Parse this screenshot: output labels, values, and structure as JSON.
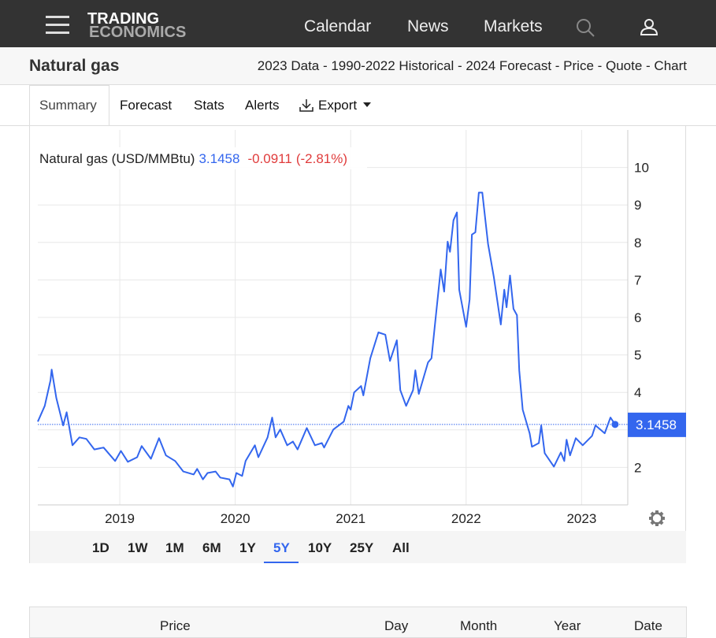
{
  "nav": {
    "logo_top": "TRADING",
    "logo_bottom": "ECONOMICS",
    "links": [
      "Calendar",
      "News",
      "Markets"
    ]
  },
  "header": {
    "title": "Natural gas",
    "links": "2023 Data - 1990-2022 Historical - 2024 Forecast - Price - Quote - Chart"
  },
  "tabs": [
    "Summary",
    "Forecast",
    "Stats",
    "Alerts",
    "Export"
  ],
  "chart_data": {
    "type": "line",
    "x": [
      2018.29,
      2018.35,
      2018.4,
      2018.41,
      2018.45,
      2018.51,
      2018.54,
      2018.59,
      2018.65,
      2018.71,
      2018.78,
      2018.86,
      2018.96,
      2019.01,
      2019.07,
      2019.15,
      2019.19,
      2019.27,
      2019.34,
      2019.4,
      2019.48,
      2019.55,
      2019.64,
      2019.67,
      2019.72,
      2019.76,
      2019.83,
      2019.87,
      2019.95,
      2019.98,
      2020.01,
      2020.06,
      2020.09,
      2020.17,
      2020.2,
      2020.28,
      2020.32,
      2020.35,
      2020.39,
      2020.45,
      2020.5,
      2020.54,
      2020.62,
      2020.69,
      2020.75,
      2020.77,
      2020.85,
      2020.94,
      2020.98,
      2021.0,
      2021.03,
      2021.09,
      2021.11,
      2021.17,
      2021.24,
      2021.3,
      2021.34,
      2021.4,
      2021.43,
      2021.48,
      2021.54,
      2021.56,
      2021.59,
      2021.67,
      2021.7,
      2021.73,
      2021.78,
      2021.81,
      2021.84,
      2021.86,
      2021.89,
      2021.92,
      2021.94,
      2022.0,
      2022.03,
      2022.05,
      2022.08,
      2022.11,
      2022.14,
      2022.19,
      2022.24,
      2022.3,
      2022.33,
      2022.35,
      2022.38,
      2022.41,
      2022.44,
      2022.46,
      2022.49,
      2022.55,
      2022.57,
      2022.63,
      2022.65,
      2022.68,
      2022.76,
      2022.82,
      2022.85,
      2022.87,
      2022.9,
      2022.95,
      2023.01,
      2023.09,
      2023.12,
      2023.2,
      2023.25,
      2023.29
    ],
    "series": [
      {
        "name": "Natural gas (USD/MMBtu)",
        "color": "#3366ee",
        "values": [
          3.22,
          3.64,
          4.32,
          4.61,
          3.85,
          3.12,
          3.47,
          2.59,
          2.8,
          2.76,
          2.48,
          2.53,
          2.17,
          2.44,
          2.15,
          2.27,
          2.57,
          2.23,
          2.78,
          2.32,
          2.17,
          1.89,
          1.81,
          1.96,
          1.68,
          1.85,
          1.89,
          1.73,
          1.68,
          1.49,
          1.85,
          1.77,
          2.17,
          2.59,
          2.27,
          2.8,
          3.33,
          2.8,
          3.01,
          2.59,
          2.69,
          2.48,
          3.05,
          2.59,
          2.65,
          2.53,
          3.01,
          3.22,
          3.64,
          3.54,
          4.0,
          4.17,
          3.92,
          4.91,
          5.6,
          5.54,
          4.84,
          5.39,
          4.06,
          3.64,
          4.06,
          4.59,
          3.96,
          4.8,
          4.91,
          5.81,
          7.28,
          6.69,
          8.02,
          7.75,
          8.59,
          8.8,
          6.74,
          5.75,
          6.48,
          8.21,
          8.27,
          9.33,
          9.33,
          7.96,
          7.07,
          5.81,
          6.74,
          6.27,
          7.12,
          6.23,
          6.06,
          4.59,
          3.54,
          2.91,
          2.55,
          2.65,
          3.12,
          2.38,
          2.02,
          2.4,
          2.17,
          2.74,
          2.32,
          2.78,
          2.59,
          2.84,
          3.12,
          2.91,
          3.33,
          3.1458
        ]
      }
    ],
    "change": -0.0911,
    "change_pct": {
      "value": -2.81,
      "label": "(-2.81%)"
    },
    "xlim": [
      2018.29,
      2023.4
    ],
    "xticks": [
      2019,
      2020,
      2021,
      2022,
      2023
    ],
    "ylim": [
      1,
      11
    ],
    "yticks": [
      2,
      3,
      4,
      5,
      6,
      7,
      8,
      9,
      10
    ],
    "grid": true
  },
  "ranges": {
    "options": [
      "1D",
      "1W",
      "1M",
      "6M",
      "1Y",
      "5Y",
      "10Y",
      "25Y",
      "All"
    ],
    "selected": "5Y"
  },
  "table": {
    "header": [
      "Price",
      "Day",
      "Month",
      "Year",
      "Date"
    ]
  }
}
